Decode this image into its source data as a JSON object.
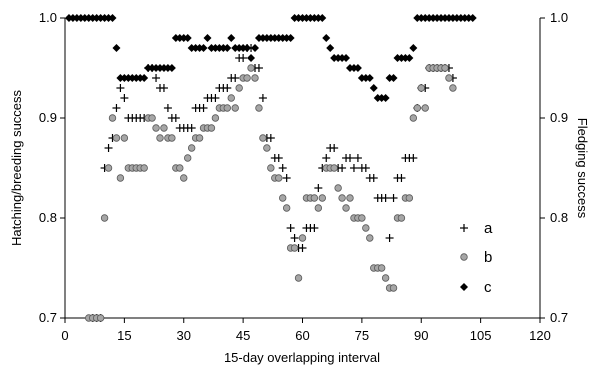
{
  "chart_data": {
    "type": "scatter",
    "xlabel": "15-day overlapping interval",
    "ylabel": "Hatching/breeding success",
    "y2label": "Fledging success",
    "xlim": [
      0,
      120
    ],
    "ylim": [
      0.7,
      1.0
    ],
    "y2lim": [
      0.7,
      1.0
    ],
    "xticks": [
      0,
      15,
      30,
      45,
      60,
      75,
      90,
      105,
      120
    ],
    "yticks": [
      0.7,
      0.8,
      0.9,
      1.0
    ],
    "ytick_labels": [
      "0.7",
      "0.8",
      "0.9",
      "1.0"
    ],
    "y2tick_labels": [
      "0.7",
      "0.8",
      "0.9",
      "1.0"
    ],
    "legend_position": "right",
    "series": [
      {
        "name": "a",
        "marker": "plus",
        "axis": "left",
        "x": [
          7,
          8,
          9,
          10,
          11,
          12,
          13,
          14,
          15,
          16,
          17,
          18,
          19,
          20,
          21,
          22,
          23,
          24,
          25,
          26,
          27,
          28,
          29,
          30,
          31,
          32,
          33,
          34,
          35,
          36,
          37,
          38,
          39,
          40,
          41,
          42,
          43,
          44,
          45,
          46,
          47,
          48,
          49,
          50,
          51,
          52,
          53,
          54,
          55,
          56,
          57,
          58,
          59,
          60,
          61,
          62,
          63,
          64,
          65,
          66,
          67,
          68,
          69,
          70,
          71,
          72,
          73,
          74,
          75,
          76,
          77,
          78,
          79,
          80,
          81,
          82,
          83,
          84,
          85,
          86,
          87,
          88,
          89,
          90,
          91,
          92,
          93,
          94,
          95,
          96,
          97,
          98
        ],
        "y": [
          0.7,
          0.7,
          0.7,
          0.85,
          0.87,
          0.88,
          0.91,
          0.93,
          0.92,
          0.9,
          0.9,
          0.9,
          0.9,
          0.9,
          0.95,
          0.95,
          0.94,
          0.93,
          0.93,
          0.91,
          0.9,
          0.9,
          0.89,
          0.89,
          0.89,
          0.89,
          0.91,
          0.91,
          0.91,
          0.92,
          0.92,
          0.92,
          0.93,
          0.93,
          0.93,
          0.94,
          0.94,
          0.96,
          0.96,
          0.97,
          0.97,
          0.95,
          0.95,
          0.92,
          0.88,
          0.88,
          0.86,
          0.86,
          0.85,
          0.84,
          0.79,
          0.78,
          0.77,
          0.77,
          0.79,
          0.79,
          0.79,
          0.83,
          0.85,
          0.86,
          0.87,
          0.87,
          0.85,
          0.85,
          0.86,
          0.86,
          0.85,
          0.86,
          0.85,
          0.85,
          0.84,
          0.84,
          0.82,
          0.82,
          0.82,
          0.78,
          0.82,
          0.84,
          0.84,
          0.86,
          0.86,
          0.86,
          0.91,
          0.93,
          0.93,
          0.95,
          0.95,
          0.95,
          0.95,
          0.95,
          0.95,
          0.94
        ]
      },
      {
        "name": "b",
        "marker": "circle",
        "axis": "left",
        "x": [
          6,
          7,
          8,
          9,
          10,
          11,
          12,
          13,
          14,
          15,
          16,
          17,
          18,
          19,
          20,
          21,
          22,
          23,
          24,
          25,
          26,
          27,
          28,
          29,
          30,
          31,
          32,
          33,
          34,
          35,
          36,
          37,
          38,
          39,
          40,
          41,
          42,
          43,
          44,
          45,
          46,
          47,
          48,
          49,
          50,
          51,
          52,
          53,
          54,
          55,
          56,
          57,
          58,
          59,
          60,
          61,
          62,
          63,
          64,
          65,
          66,
          67,
          68,
          69,
          70,
          71,
          72,
          73,
          74,
          75,
          76,
          77,
          78,
          79,
          80,
          81,
          82,
          83,
          84,
          85,
          86,
          87,
          88,
          89,
          90,
          91,
          92,
          93,
          94,
          95,
          96,
          97,
          98
        ],
        "y": [
          0.7,
          0.7,
          0.7,
          0.7,
          0.8,
          0.85,
          0.9,
          0.88,
          0.84,
          0.88,
          0.85,
          0.85,
          0.85,
          0.85,
          0.85,
          0.9,
          0.9,
          0.89,
          0.88,
          0.89,
          0.88,
          0.88,
          0.85,
          0.85,
          0.84,
          0.86,
          0.87,
          0.88,
          0.88,
          0.89,
          0.89,
          0.89,
          0.9,
          0.91,
          0.91,
          0.91,
          0.92,
          0.91,
          0.93,
          0.94,
          0.94,
          0.95,
          0.94,
          0.91,
          0.88,
          0.87,
          0.85,
          0.84,
          0.84,
          0.82,
          0.81,
          0.77,
          0.77,
          0.74,
          0.78,
          0.82,
          0.82,
          0.82,
          0.81,
          0.82,
          0.85,
          0.85,
          0.85,
          0.83,
          0.82,
          0.81,
          0.82,
          0.8,
          0.8,
          0.8,
          0.79,
          0.78,
          0.75,
          0.75,
          0.75,
          0.74,
          0.73,
          0.73,
          0.8,
          0.8,
          0.82,
          0.82,
          0.9,
          0.91,
          0.93,
          0.91,
          0.95,
          0.95,
          0.95,
          0.95,
          0.95,
          0.94,
          0.93
        ]
      },
      {
        "name": "c",
        "marker": "diamond",
        "axis": "right",
        "x": [
          1,
          2,
          3,
          4,
          5,
          6,
          7,
          8,
          9,
          10,
          11,
          12,
          13,
          14,
          15,
          16,
          17,
          18,
          19,
          20,
          21,
          22,
          23,
          24,
          25,
          26,
          27,
          28,
          29,
          30,
          31,
          32,
          33,
          34,
          35,
          36,
          37,
          38,
          39,
          40,
          41,
          42,
          43,
          44,
          45,
          46,
          47,
          48,
          49,
          50,
          51,
          52,
          53,
          54,
          55,
          56,
          57,
          58,
          59,
          60,
          61,
          62,
          63,
          64,
          65,
          66,
          67,
          68,
          69,
          70,
          71,
          72,
          73,
          74,
          75,
          76,
          77,
          78,
          79,
          80,
          81,
          82,
          83,
          84,
          85,
          86,
          87,
          88,
          89,
          90,
          91,
          92,
          93,
          94,
          95,
          96,
          97,
          98,
          99,
          100,
          101,
          102,
          103
        ],
        "y": [
          1.0,
          1.0,
          1.0,
          1.0,
          1.0,
          1.0,
          1.0,
          1.0,
          1.0,
          1.0,
          1.0,
          1.0,
          0.97,
          0.94,
          0.94,
          0.94,
          0.94,
          0.94,
          0.94,
          0.94,
          0.95,
          0.95,
          0.95,
          0.95,
          0.95,
          0.95,
          0.95,
          0.98,
          0.98,
          0.98,
          0.98,
          0.97,
          0.97,
          0.97,
          0.97,
          0.98,
          0.97,
          0.97,
          0.97,
          0.97,
          0.97,
          0.98,
          0.97,
          0.97,
          0.97,
          0.97,
          0.96,
          0.97,
          0.98,
          0.98,
          0.98,
          0.98,
          0.98,
          0.98,
          0.98,
          0.98,
          0.98,
          1.0,
          1.0,
          1.0,
          1.0,
          1.0,
          1.0,
          1.0,
          1.0,
          0.98,
          0.97,
          0.96,
          0.96,
          0.96,
          0.96,
          0.95,
          0.95,
          0.95,
          0.94,
          0.94,
          0.94,
          0.93,
          0.92,
          0.92,
          0.92,
          0.94,
          0.94,
          0.96,
          0.96,
          0.96,
          0.96,
          0.97,
          1.0,
          1.0,
          1.0,
          1.0,
          1.0,
          1.0,
          1.0,
          1.0,
          1.0,
          1.0,
          1.0,
          1.0,
          1.0,
          1.0,
          1.0
        ]
      }
    ]
  }
}
